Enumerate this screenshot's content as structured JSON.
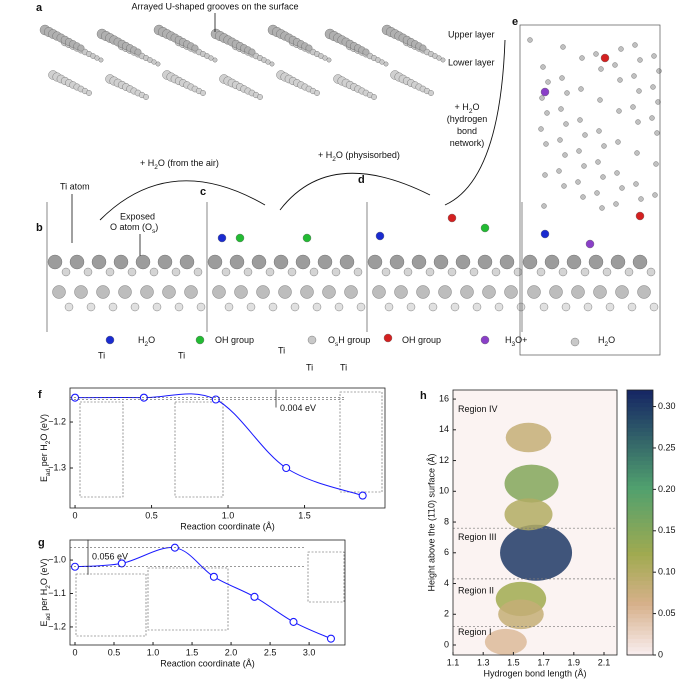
{
  "panels": {
    "a": {
      "letter": "a",
      "caption": "Arrayed U-shaped grooves on the surface",
      "upper": "Upper layer",
      "lower": "Lower layer"
    },
    "b": {
      "letter": "b",
      "ti": "Ti atom",
      "exposed": "Exposed",
      "oatom": [
        "O atom (O",
        "s",
        ")"
      ]
    },
    "c": {
      "letter": "c"
    },
    "d": {
      "letter": "d"
    },
    "e": {
      "letter": "e"
    },
    "arrow1": [
      "+ H",
      "2",
      "O (from the air)"
    ],
    "arrow2": [
      "+ H",
      "2",
      "O (physisorbed)"
    ],
    "arrow3": [
      [
        "+ H",
        "2",
        "O"
      ],
      [
        "(hydrogen"
      ],
      [
        "bond"
      ],
      [
        "network)"
      ]
    ]
  },
  "legend": [
    [
      "H",
      "2",
      "O"
    ],
    [
      "OH group"
    ],
    [
      "O",
      "s",
      "H group"
    ],
    [
      "OH group"
    ],
    [
      "H",
      "3",
      "O+"
    ],
    [
      "H",
      "2",
      "O"
    ]
  ],
  "ti_labels": [
    "Ti",
    "Ti",
    "Ti",
    "Ti",
    "Ti"
  ],
  "chart_data": [
    {
      "type": "line",
      "panel": "f",
      "color": "#1a1aff",
      "x": [
        0,
        0.45,
        0.92,
        1.38,
        1.88
      ],
      "values": [
        -1.147,
        -1.147,
        -1.151,
        -1.3,
        -1.36
      ],
      "xlim": [
        -0.033,
        2.026
      ],
      "ylim": [
        -1.387,
        -1.126
      ],
      "xticks": [
        0,
        0.5,
        {
          "value": 1,
          "label": "1.0"
        },
        1.5
      ],
      "yticks": [
        {
          "value": -1.2,
          "label": "−1.2"
        },
        {
          "value": -1.3,
          "label": "−1.3"
        }
      ],
      "xlabel": "Reaction coordinate (Å)",
      "ylabel": [
        "E",
        "ad",
        " per H",
        "2",
        "O (eV)"
      ],
      "annotation": "0.004 eV"
    },
    {
      "type": "line",
      "panel": "g",
      "color": "#1a1aff",
      "x": [
        0,
        0.6,
        1.28,
        1.78,
        2.3,
        2.8,
        3.28
      ],
      "values": [
        -1.02,
        -1.01,
        -0.963,
        -1.05,
        -1.11,
        -1.185,
        -1.235
      ],
      "xlim": [
        -0.064,
        3.46
      ],
      "ylim": [
        -1.254,
        -0.94
      ],
      "xticks": [
        0,
        0.5,
        {
          "value": 1,
          "label": "1.0"
        },
        1.5,
        {
          "value": 2,
          "label": "2.0"
        },
        2.5,
        {
          "value": 3,
          "label": "3.0"
        }
      ],
      "yticks": [
        {
          "value": -1,
          "label": "−1.0"
        },
        {
          "value": -1.1,
          "label": "−1.1"
        },
        {
          "value": -1.2,
          "label": "−1.2"
        }
      ],
      "xlabel": "Reaction coordinate (Å)",
      "ylabel": [
        "E",
        "ad",
        " per H",
        "2",
        "O (eV)"
      ],
      "annotation": "0.056 eV"
    },
    {
      "type": "density",
      "panel": "h",
      "x": [
        1.65,
        1.62,
        1.6,
        1.6,
        1.55,
        1.55,
        1.45
      ],
      "y": [
        6,
        10.5,
        13.5,
        8.5,
        3,
        2,
        0.2
      ],
      "values": [
        0.3,
        0.15,
        0.08,
        0.1,
        0.12,
        0.08,
        0.05
      ],
      "xlim": [
        1.1,
        2.186
      ],
      "ylim": [
        -0.65,
        16.59
      ],
      "xticks": [
        1.1,
        1.3,
        1.5,
        1.7,
        1.9,
        2.1
      ],
      "yticks": [
        0,
        2,
        4,
        6,
        8,
        10,
        12,
        14,
        16
      ],
      "clim": [
        0,
        0.32
      ],
      "cticks": [
        0,
        0.05,
        {
          "value": 0.1,
          "label": "0.10"
        },
        0.15,
        {
          "value": 0.2,
          "label": "0.20"
        },
        0.25,
        {
          "value": 0.3,
          "label": "0.30"
        }
      ],
      "xlabel": "Hydrogen bond length (Å)",
      "ylabel": "Height above the (1̄10) surface (Å)",
      "regions": [
        "Region IV",
        "Region III",
        "Region II",
        "Region I"
      ],
      "region_y": [
        15.3,
        7.0,
        3.5,
        0.8
      ],
      "region_lines": [
        7.6,
        4.3,
        1.2
      ]
    }
  ]
}
